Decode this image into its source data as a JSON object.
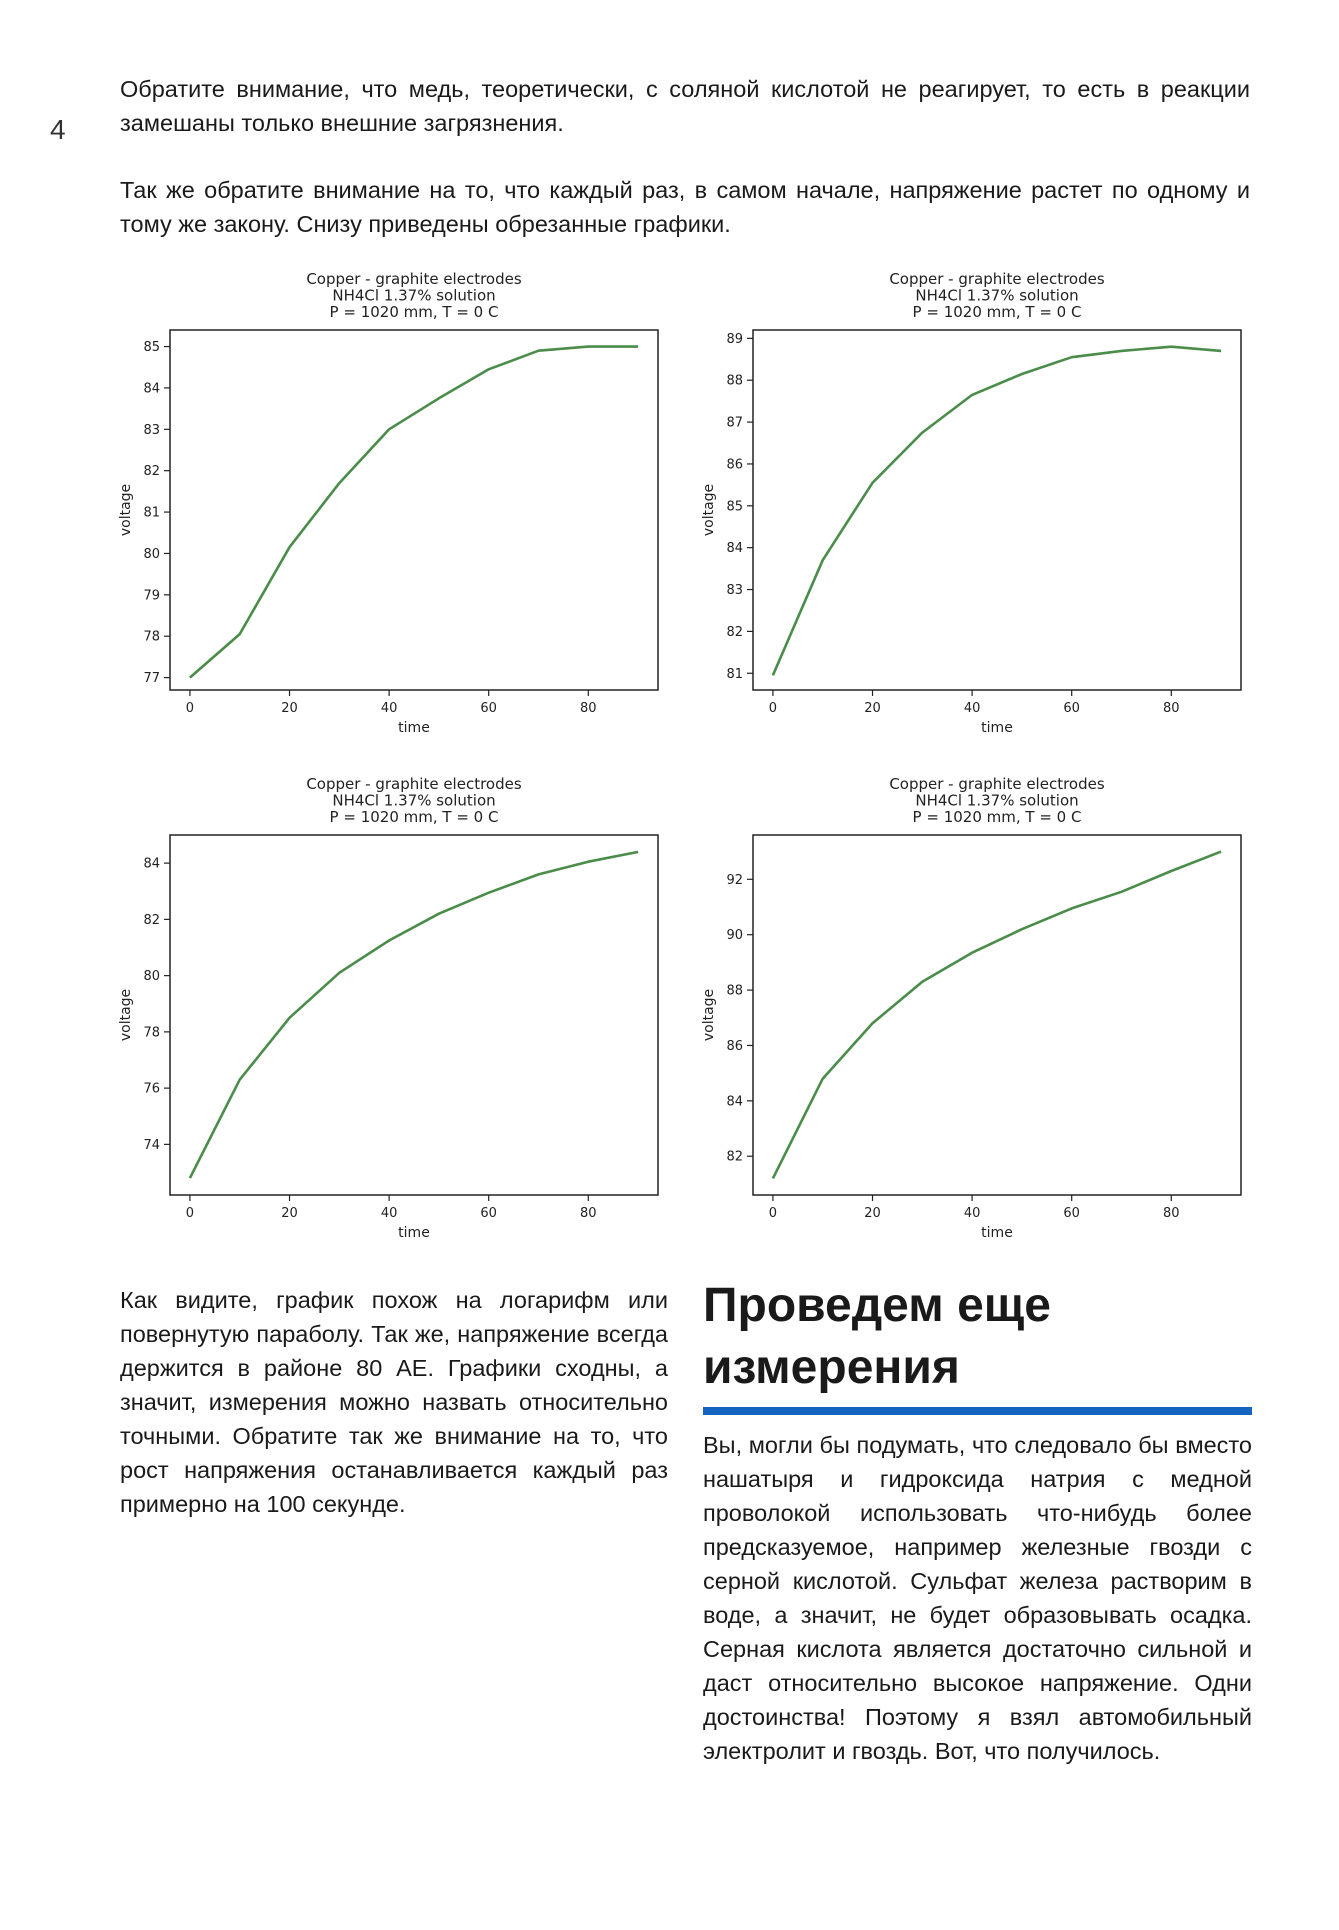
{
  "page_number": "4",
  "intro": {
    "paragraph1": "Обратите внимание, что медь, теоретически, с соляной кислотой не реагирует, то есть в реакции замешаны только внешние загрязнения.",
    "paragraph2": "Так же обратите внимание на то, что каждый раз, в самом начале, напряжение растет по одному и тому же закону. Снизу приведены обрезанные графики."
  },
  "colors": {
    "line": "#4a8c4a",
    "accent_rule": "#1565c0",
    "axis": "#222222"
  },
  "chart_data": [
    {
      "type": "line",
      "title": [
        "Copper - graphite electrodes",
        "NH4Cl 1.37% solution",
        "P = 1020 mm, T = 0 C"
      ],
      "xlabel": "time",
      "ylabel": "voltage",
      "xlim": [
        -4,
        94
      ],
      "ylim": [
        76.7,
        85.4
      ],
      "xticks": [
        0,
        20,
        40,
        60,
        80
      ],
      "yticks": [
        77,
        78,
        79,
        80,
        81,
        82,
        83,
        84,
        85
      ],
      "x": [
        0,
        10,
        20,
        30,
        40,
        50,
        60,
        70,
        80,
        90
      ],
      "y": [
        77.0,
        78.05,
        80.15,
        81.7,
        83.0,
        83.75,
        84.45,
        84.9,
        85.0,
        85.0
      ],
      "grid": false
    },
    {
      "type": "line",
      "title": [
        "Copper - graphite electrodes",
        "NH4Cl 1.37% solution",
        "P = 1020 mm, T = 0 C"
      ],
      "xlabel": "time",
      "ylabel": "voltage",
      "xlim": [
        -4,
        94
      ],
      "ylim": [
        80.6,
        89.2
      ],
      "xticks": [
        0,
        20,
        40,
        60,
        80
      ],
      "yticks": [
        81,
        82,
        83,
        84,
        85,
        86,
        87,
        88,
        89
      ],
      "x": [
        0,
        10,
        20,
        30,
        40,
        50,
        60,
        70,
        80,
        90
      ],
      "y": [
        80.95,
        83.7,
        85.55,
        86.75,
        87.65,
        88.15,
        88.55,
        88.7,
        88.8,
        88.7
      ],
      "grid": false
    },
    {
      "type": "line",
      "title": [
        "Copper - graphite electrodes",
        "NH4Cl 1.37% solution",
        "P = 1020 mm, T = 0 C"
      ],
      "xlabel": "time",
      "ylabel": "voltage",
      "xlim": [
        -4,
        94
      ],
      "ylim": [
        72.2,
        85.0
      ],
      "xticks": [
        0,
        20,
        40,
        60,
        80
      ],
      "yticks": [
        74,
        76,
        78,
        80,
        82,
        84
      ],
      "x": [
        0,
        10,
        20,
        30,
        40,
        50,
        60,
        70,
        80,
        90
      ],
      "y": [
        72.8,
        76.3,
        78.5,
        80.1,
        81.25,
        82.2,
        82.95,
        83.6,
        84.05,
        84.4
      ],
      "grid": false
    },
    {
      "type": "line",
      "title": [
        "Copper - graphite electrodes",
        "NH4Cl 1.37% solution",
        "P = 1020 mm, T = 0 C"
      ],
      "xlabel": "time",
      "ylabel": "voltage",
      "xlim": [
        -4,
        94
      ],
      "ylim": [
        80.6,
        93.6
      ],
      "xticks": [
        0,
        20,
        40,
        60,
        80
      ],
      "yticks": [
        82,
        84,
        86,
        88,
        90,
        92
      ],
      "x": [
        0,
        10,
        20,
        30,
        40,
        50,
        60,
        70,
        80,
        90
      ],
      "y": [
        81.2,
        84.8,
        86.8,
        88.3,
        89.35,
        90.2,
        90.95,
        91.55,
        92.3,
        93.0
      ],
      "grid": false
    }
  ],
  "after_charts": {
    "left_paragraph": "Как видите, график похож на логарифм или повернутую параболу. Так же, напряжение всегда держится в районе 80 АЕ. Графики сходны, а значит, измерения можно назвать относительно точными. Обратите так же внимание на то, что рост напряжения останавливается каждый раз примерно на 100 секунде.",
    "heading": "Проведем еще измерения",
    "right_paragraph": "Вы, могли бы подумать, что следовало бы вместо нашатыря и гидроксида натрия с медной проволокой использовать что-нибудь более предсказуемое, например железные гвозди с серной кислотой. Сульфат железа растворим в воде, а значит, не будет образовывать осадка. Серная кислота является достаточно сильной и даст относительно высокое напряжение. Одни достоинства! Поэтому я взял автомобильный электролит и гвоздь. Вот, что получилось."
  }
}
